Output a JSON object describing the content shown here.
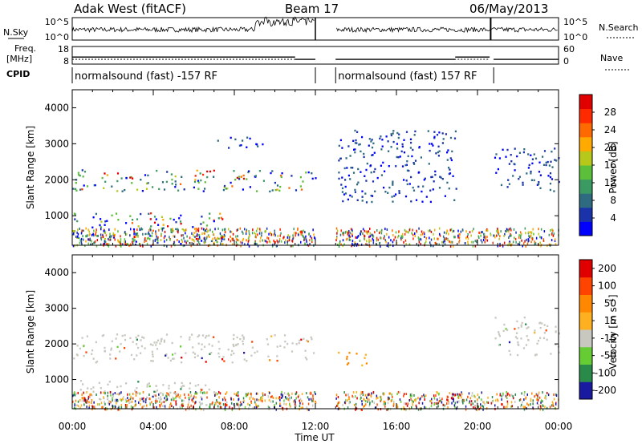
{
  "header": {
    "station": "Adak West (fitACF)",
    "beam": "Beam 17",
    "date": "06/May/2013"
  },
  "summary_panels": {
    "nsky_label": "N.Sky",
    "nsearch_label": "N.Search",
    "freq_label_1": "Freq.",
    "freq_label_2": "[MHz]",
    "nave_label": "Nave",
    "cpid_label": "CPID",
    "noise_ticks": [
      "10^5",
      "10^0"
    ],
    "nsearch_ticks": [
      "10^5",
      "10^0"
    ],
    "freq_ticks": [
      "18",
      "8"
    ],
    "nave_ticks": [
      "60",
      "0"
    ],
    "cpid_segments": [
      {
        "name": "normalsound (fast) -157 RF",
        "start_hr": 0.0,
        "end_hr": 12.0
      },
      {
        "name": "normalsound (fast) 157 RF",
        "start_hr": 13.0,
        "end_hr": 20.8
      }
    ],
    "data_gap_hr": [
      12.0,
      13.0
    ],
    "freq_steps": [
      {
        "start_hr": 0.0,
        "end_hr": 11.0,
        "freq_mhz": 12.0
      },
      {
        "start_hr": 11.0,
        "end_hr": 12.0,
        "freq_mhz": 10.7
      },
      {
        "start_hr": 13.0,
        "end_hr": 18.9,
        "freq_mhz": 10.7
      },
      {
        "start_hr": 18.9,
        "end_hr": 20.6,
        "freq_mhz": 12.0
      },
      {
        "start_hr": 20.8,
        "end_hr": 24.0,
        "freq_mhz": 10.7
      }
    ]
  },
  "chart_data": [
    {
      "type": "heatmap",
      "quantity": "power",
      "ylabel": "Slant Range [km]",
      "xlabel": "",
      "xlim_hours": [
        0,
        24
      ],
      "ylim": [
        180,
        4500
      ],
      "yticks": [
        "1000",
        "2000",
        "3000",
        "4000"
      ],
      "colorbar_label": "Power [dB]",
      "colorbar_ticks": [
        "4",
        "8",
        "12",
        "16",
        "20",
        "24",
        "28"
      ],
      "colorbar_colors": [
        "#0000ff",
        "#1a33aa",
        "#2e6b80",
        "#3a9a62",
        "#5bbf3a",
        "#b8c81a",
        "#ffaa00",
        "#ff6a00",
        "#ff2a00",
        "#e00000"
      ],
      "echo_regions": [
        {
          "t0": 0.0,
          "t1": 12.0,
          "r0": 1700,
          "r1": 2300,
          "level": "high"
        },
        {
          "t0": 0.0,
          "t1": 7.5,
          "r0": 200,
          "r1": 1100,
          "level": "high"
        },
        {
          "t0": 7.0,
          "t1": 9.5,
          "r0": 2900,
          "r1": 3200,
          "level": "low"
        },
        {
          "t0": 13.0,
          "t1": 19.0,
          "r0": 1400,
          "r1": 3400,
          "level": "low"
        },
        {
          "t0": 20.8,
          "t1": 24.0,
          "r0": 1700,
          "r1": 2900,
          "level": "low"
        }
      ]
    },
    {
      "type": "heatmap",
      "quantity": "velocity",
      "ylabel": "Slant Range [km]",
      "xlabel": "Time UT",
      "xlim_hours": [
        0,
        24
      ],
      "ylim": [
        180,
        4500
      ],
      "yticks": [
        "1000",
        "2000",
        "3000",
        "4000"
      ],
      "xticks": [
        "00:00",
        "04:00",
        "08:00",
        "12:00",
        "16:00",
        "20:00",
        "00:00"
      ],
      "colorbar_label": "Velocity [m s⁻¹]",
      "colorbar_ticks": [
        "200",
        "100",
        "50",
        "15",
        "-15",
        "-50",
        "-100",
        "-200"
      ],
      "colorbar_colors": [
        "#1a1aa0",
        "#2a8a4a",
        "#66cc33",
        "#c8c8c0",
        "#ffb020",
        "#ff8800",
        "#ff4400",
        "#e00000"
      ],
      "echo_regions": [
        {
          "t0": 0.0,
          "t1": 12.0,
          "r0": 1500,
          "r1": 2300,
          "level": "ground"
        },
        {
          "t0": 0.0,
          "t1": 7.0,
          "r0": 200,
          "r1": 1000,
          "level": "ground"
        },
        {
          "t0": 13.0,
          "t1": 14.5,
          "r0": 1400,
          "r1": 1800,
          "level": "away"
        },
        {
          "t0": 20.8,
          "t1": 24.0,
          "r0": 1700,
          "r1": 2800,
          "level": "ground"
        }
      ]
    }
  ]
}
